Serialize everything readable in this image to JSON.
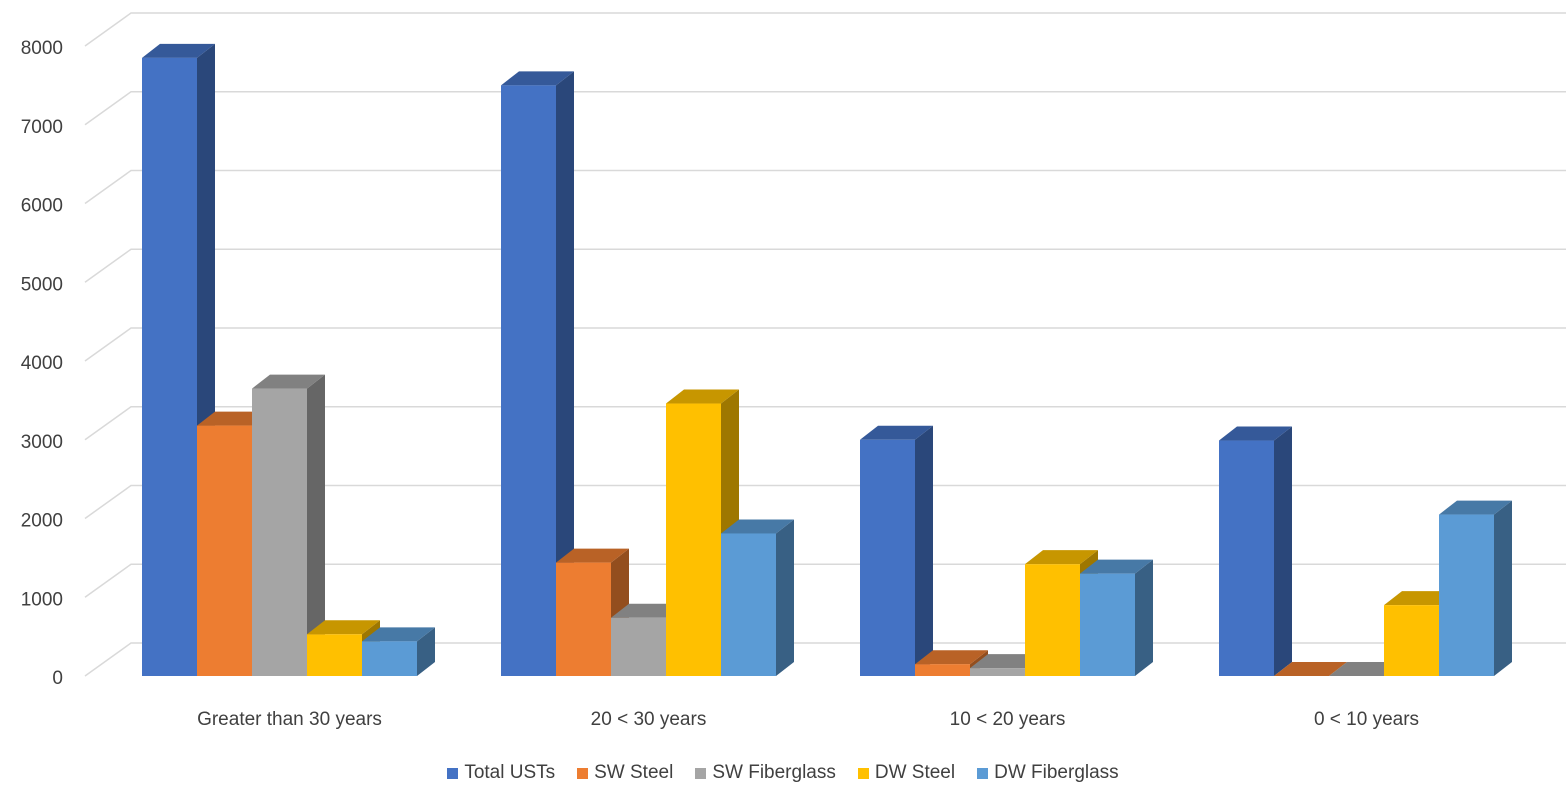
{
  "chart_data": {
    "type": "bar",
    "categories": [
      "Greater than 30 years",
      "20 < 30 years",
      "10 < 20 years",
      "0 < 10 years"
    ],
    "series": [
      {
        "name": "Total USTs",
        "values": [
          7850,
          7500,
          3000,
          2990
        ]
      },
      {
        "name": "SW Steel",
        "values": [
          3180,
          1440,
          150,
          0
        ]
      },
      {
        "name": "SW Fiberglass",
        "values": [
          3650,
          740,
          100,
          0
        ]
      },
      {
        "name": "DW Steel",
        "values": [
          530,
          3460,
          1420,
          900
        ]
      },
      {
        "name": "DW Fiberglass",
        "values": [
          440,
          1810,
          1300,
          2050
        ]
      }
    ],
    "colors": [
      "#4472C4",
      "#ED7D31",
      "#A5A5A5",
      "#FFC000",
      "#5B9BD5"
    ],
    "yticks": [
      "0",
      "1000",
      "2000",
      "3000",
      "4000",
      "5000",
      "6000",
      "7000",
      "8000"
    ],
    "ylim": [
      0,
      8000
    ],
    "grid": true,
    "legend_position": "bottom",
    "style": "3d-clustered-column"
  }
}
